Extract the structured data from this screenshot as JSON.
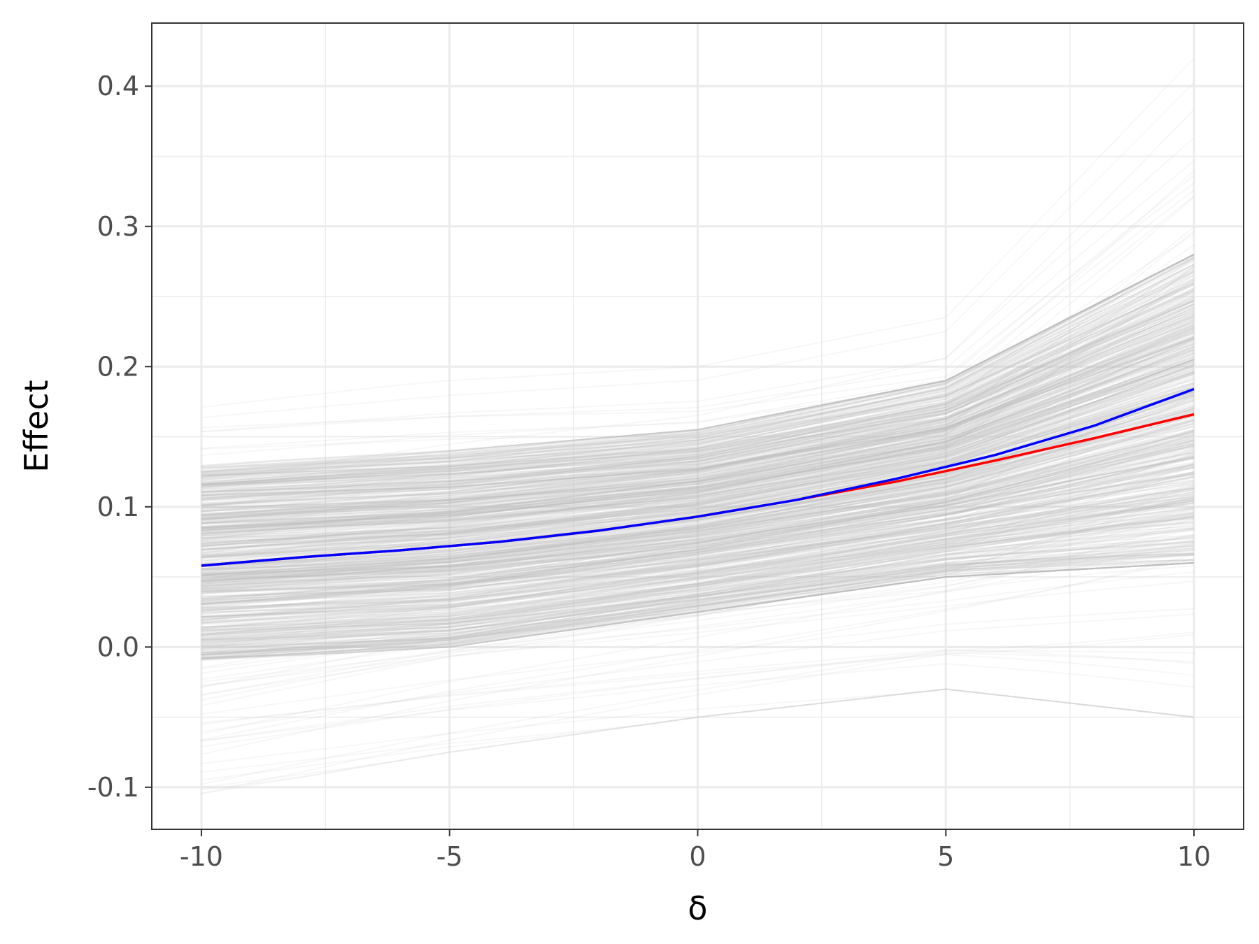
{
  "chart_data": {
    "type": "line",
    "title": "",
    "xlabel": "δ",
    "ylabel": "Effect",
    "xlim": [
      -11,
      11
    ],
    "ylim": [
      -0.13,
      0.445
    ],
    "x_ticks": [
      -10,
      -5,
      0,
      5,
      10
    ],
    "x_tick_labels": [
      "-10",
      "-5",
      "0",
      "5",
      "10"
    ],
    "y_ticks": [
      -0.1,
      0.0,
      0.1,
      0.2,
      0.3,
      0.4
    ],
    "y_tick_labels": [
      "-0.1",
      "0.0",
      "0.1",
      "0.2",
      "0.3",
      "0.4"
    ],
    "grid": true,
    "legend": "none",
    "background_band": {
      "color": "#bebebe",
      "x": [
        -10,
        -5,
        0,
        5,
        10
      ],
      "outer_upper": [
        0.175,
        0.19,
        0.2,
        0.235,
        0.42
      ],
      "inner_upper": [
        0.13,
        0.14,
        0.155,
        0.19,
        0.28
      ],
      "inner_lower": [
        -0.01,
        0.0,
        0.025,
        0.05,
        0.06
      ],
      "outer_lower": [
        -0.105,
        -0.075,
        -0.05,
        -0.03,
        -0.05
      ]
    },
    "series": [
      {
        "color": "#ff0000",
        "x": [
          -10,
          -8,
          -6,
          -4,
          -2,
          0,
          2,
          4,
          6,
          8,
          10
        ],
        "values": [
          0.058,
          0.064,
          0.069,
          0.075,
          0.083,
          0.093,
          0.105,
          0.118,
          0.133,
          0.149,
          0.166
        ]
      },
      {
        "color": "#0000ff",
        "x": [
          -10,
          -8,
          -6,
          -4,
          -2,
          0,
          2,
          4,
          6,
          8,
          10
        ],
        "values": [
          0.058,
          0.064,
          0.069,
          0.075,
          0.083,
          0.093,
          0.105,
          0.12,
          0.137,
          0.158,
          0.184
        ]
      }
    ]
  }
}
